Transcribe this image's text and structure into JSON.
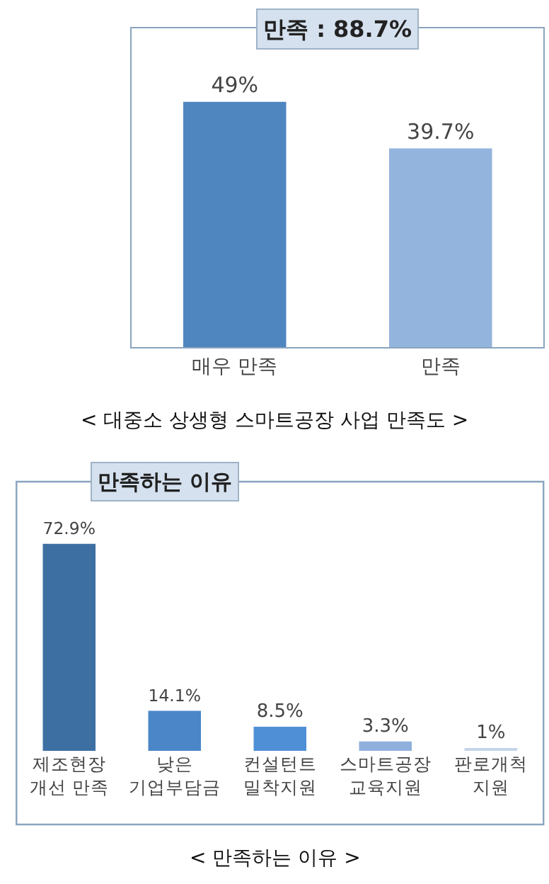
{
  "chart_data": [
    {
      "type": "bar",
      "title": "만족 : 88.7%",
      "categories": [
        "매우 만족",
        "만족"
      ],
      "values": [
        49,
        39.7
      ],
      "colors": [
        "#4f86c0",
        "#93b4dd"
      ],
      "value_labels": [
        "49%",
        "39.7%"
      ],
      "annotations": [
        "< 대중소 상생형 스마트공장 사업 만족도 >"
      ]
    },
    {
      "type": "bar",
      "title": "만족하는 이유",
      "categories": [
        "제조현장\n개선 만족",
        "낮은\n기업부담금",
        "컨설턴트\n밀착지원",
        "스마트공장\n교육지원",
        "판로개척\n지원"
      ],
      "values": [
        72.9,
        14.1,
        8.5,
        3.3,
        1
      ],
      "colors": [
        "#3d6fa3",
        "#4a86c8",
        "#4f8fd6",
        "#8fb0dd",
        "#c5d5ea"
      ],
      "value_labels": [
        "72.9%",
        "14.1%",
        "8.5%",
        "3.3%",
        "1%"
      ],
      "annotations": [
        "< 만족하는 이유 >"
      ]
    }
  ]
}
